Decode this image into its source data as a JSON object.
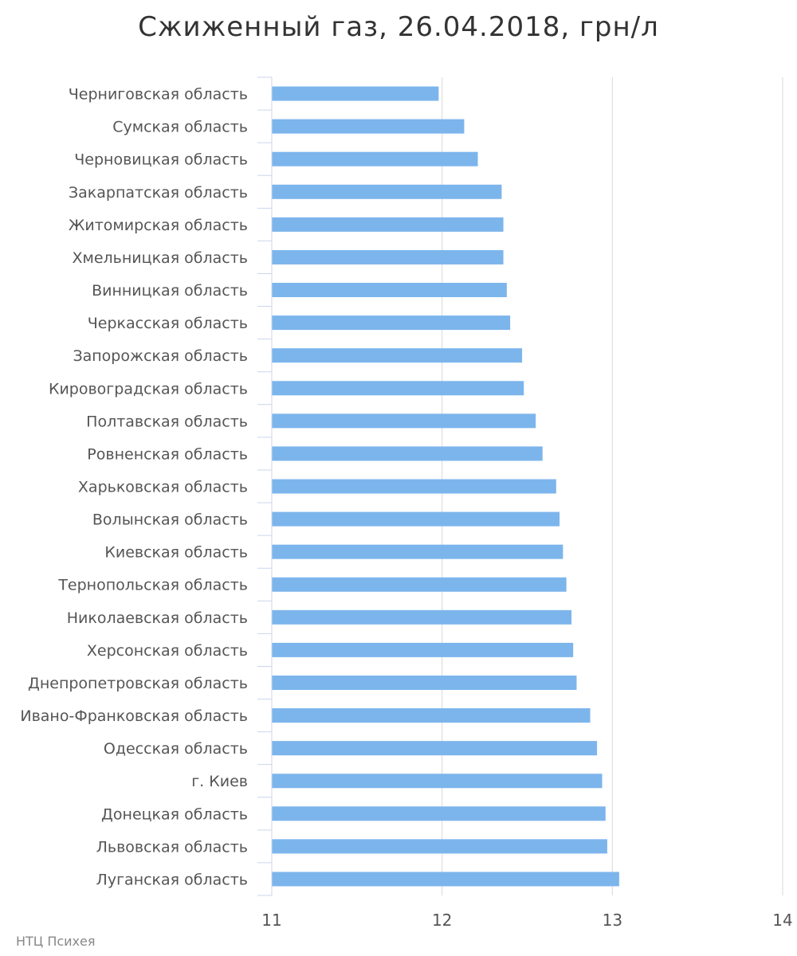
{
  "chart_data": {
    "type": "bar",
    "orientation": "horizontal",
    "title": "Сжиженный газ, 26.04.2018, грн/л",
    "categories": [
      "Черниговская область",
      "Сумская область",
      "Черновицкая область",
      "Закарпатская область",
      "Житомирская область",
      "Хмельницкая область",
      "Винницкая область",
      "Черкасская область",
      "Запорожская область",
      "Кировоградская область",
      "Полтавская область",
      "Ровненская область",
      "Харьковская область",
      "Волынская область",
      "Киевская область",
      "Тернопольская область",
      "Николаевская область",
      "Херсонская область",
      "Днепропетровская область",
      "Ивано-Франковская область",
      "Одесская область",
      "г. Киев",
      "Донецкая область",
      "Львовская область",
      "Луганская область"
    ],
    "values": [
      11.98,
      12.13,
      12.21,
      12.35,
      12.36,
      12.36,
      12.38,
      12.4,
      12.47,
      12.48,
      12.55,
      12.59,
      12.67,
      12.69,
      12.71,
      12.73,
      12.76,
      12.77,
      12.79,
      12.87,
      12.91,
      12.94,
      12.96,
      12.97,
      13.04
    ],
    "xlim": [
      11,
      14
    ],
    "xticks": [
      "11",
      "12",
      "13",
      "14"
    ],
    "xlabel": "",
    "ylabel": "",
    "grid": true,
    "bar_color": "#7cb5ec"
  },
  "credit": "НТЦ Психея"
}
